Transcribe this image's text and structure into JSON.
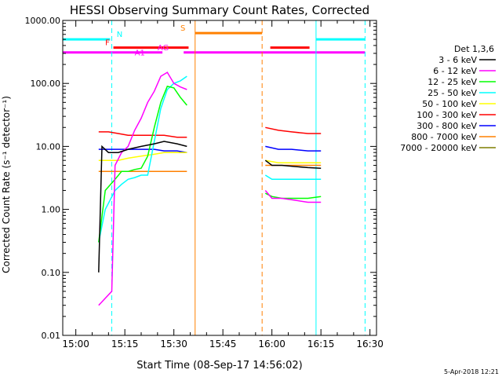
{
  "chart_data": {
    "type": "line",
    "title": "HESSI Observing Summary Count Rates, Corrected",
    "xlabel": "Start Time (08-Sep-17 14:56:02)",
    "ylabel": "Corrected Count Rate (s⁻¹ detector⁻¹)",
    "x_unit": "minutes after 14:56:02",
    "xlim": [
      0,
      96
    ],
    "ylim": [
      0.01,
      1000
    ],
    "yscale": "log",
    "x_ticks": [
      {
        "m": 4,
        "label": "15:00"
      },
      {
        "m": 19,
        "label": "15:15"
      },
      {
        "m": 34,
        "label": "15:30"
      },
      {
        "m": 49,
        "label": "15:45"
      },
      {
        "m": 64,
        "label": "16:00"
      },
      {
        "m": 79,
        "label": "16:15"
      },
      {
        "m": 94,
        "label": "16:30"
      }
    ],
    "y_ticks": [
      {
        "v": 0.01,
        "label": "0.01"
      },
      {
        "v": 0.1,
        "label": "0.10"
      },
      {
        "v": 1,
        "label": "1.00"
      },
      {
        "v": 10,
        "label": "10.00"
      },
      {
        "v": 100,
        "label": "100.00"
      },
      {
        "v": 1000,
        "label": "1000.00"
      }
    ],
    "legend_title": "Det 1,3,6",
    "legend_position": "right",
    "series": [
      {
        "name": "3 - 6 keV",
        "color": "#000000",
        "segments": [
          [
            [
              11,
              0.1
            ],
            [
              12,
              10
            ],
            [
              14,
              8
            ],
            [
              17,
              8
            ],
            [
              20,
              9
            ],
            [
              24,
              10
            ],
            [
              28,
              11
            ],
            [
              31,
              12
            ],
            [
              35,
              11
            ],
            [
              38,
              10
            ]
          ],
          [
            [
              62,
              6
            ],
            [
              64,
              5
            ],
            [
              67,
              5
            ],
            [
              71,
              4.8
            ],
            [
              75,
              4.6
            ],
            [
              79,
              4.5
            ]
          ]
        ]
      },
      {
        "name": "6 - 12 keV",
        "color": "#ff00ff",
        "segments": [
          [
            [
              11,
              0.03
            ],
            [
              15,
              0.05
            ],
            [
              16,
              5
            ],
            [
              18,
              8
            ],
            [
              20,
              10
            ],
            [
              22,
              18
            ],
            [
              24,
              28
            ],
            [
              26,
              50
            ],
            [
              28,
              75
            ],
            [
              30,
              130
            ],
            [
              32,
              150
            ],
            [
              34,
              100
            ],
            [
              36,
              88
            ],
            [
              38,
              80
            ]
          ],
          [
            [
              62,
              2
            ],
            [
              64,
              1.5
            ],
            [
              67,
              1.5
            ],
            [
              71,
              1.4
            ],
            [
              75,
              1.3
            ],
            [
              79,
              1.3
            ]
          ]
        ]
      },
      {
        "name": "12 - 25 keV",
        "color": "#00ff00",
        "segments": [
          [
            [
              11,
              0.3
            ],
            [
              13,
              2
            ],
            [
              16,
              3
            ],
            [
              18,
              4
            ],
            [
              20,
              4
            ],
            [
              22,
              4.3
            ],
            [
              24,
              4.5
            ],
            [
              26,
              7
            ],
            [
              28,
              20
            ],
            [
              30,
              50
            ],
            [
              32,
              90
            ],
            [
              34,
              85
            ],
            [
              36,
              60
            ],
            [
              38,
              45
            ]
          ],
          [
            [
              62,
              1.8
            ],
            [
              64,
              1.6
            ],
            [
              67,
              1.5
            ],
            [
              71,
              1.5
            ],
            [
              75,
              1.5
            ],
            [
              79,
              1.6
            ]
          ]
        ]
      },
      {
        "name": "25 - 50 keV",
        "color": "#00ffff",
        "segments": [
          [
            [
              11,
              0.3
            ],
            [
              13,
              1
            ],
            [
              16,
              2
            ],
            [
              18,
              2.5
            ],
            [
              20,
              3
            ],
            [
              22,
              3.2
            ],
            [
              24,
              3.5
            ],
            [
              26,
              3.5
            ],
            [
              28,
              12
            ],
            [
              30,
              40
            ],
            [
              32,
              80
            ],
            [
              34,
              100
            ],
            [
              36,
              110
            ],
            [
              38,
              130
            ]
          ],
          [
            [
              62,
              3.5
            ],
            [
              64,
              3
            ],
            [
              67,
              3
            ],
            [
              71,
              3
            ],
            [
              75,
              3
            ],
            [
              79,
              3
            ]
          ]
        ]
      },
      {
        "name": "50 - 100 keV",
        "color": "#ffff00",
        "segments": [
          [
            [
              11,
              6
            ],
            [
              14,
              6
            ],
            [
              17,
              6
            ],
            [
              20,
              6.5
            ],
            [
              24,
              7
            ],
            [
              28,
              7.5
            ],
            [
              31,
              8
            ],
            [
              35,
              8
            ],
            [
              38,
              8
            ]
          ],
          [
            [
              62,
              6
            ],
            [
              66,
              5.5
            ],
            [
              70,
              5.5
            ],
            [
              75,
              5.5
            ],
            [
              79,
              5.5
            ]
          ]
        ]
      },
      {
        "name": "100 - 300 keV",
        "color": "#ff0000",
        "segments": [
          [
            [
              11,
              17
            ],
            [
              14,
              17
            ],
            [
              17,
              16
            ],
            [
              20,
              15
            ],
            [
              24,
              15
            ],
            [
              28,
              15
            ],
            [
              31,
              15
            ],
            [
              35,
              14
            ],
            [
              38,
              14
            ]
          ],
          [
            [
              62,
              20
            ],
            [
              66,
              18
            ],
            [
              70,
              17
            ],
            [
              75,
              16
            ],
            [
              79,
              16
            ]
          ]
        ]
      },
      {
        "name": "300 - 800 keV",
        "color": "#0000ff",
        "segments": [
          [
            [
              11,
              9
            ],
            [
              14,
              9
            ],
            [
              17,
              9
            ],
            [
              20,
              9
            ],
            [
              24,
              9
            ],
            [
              28,
              9
            ],
            [
              31,
              8.5
            ],
            [
              35,
              8.5
            ],
            [
              38,
              8
            ]
          ],
          [
            [
              62,
              10
            ],
            [
              66,
              9
            ],
            [
              70,
              9
            ],
            [
              75,
              8.5
            ],
            [
              79,
              8.5
            ]
          ]
        ]
      },
      {
        "name": "800 - 7000 keV",
        "color": "#ff8000",
        "segments": [
          [
            [
              11,
              4
            ],
            [
              14,
              4
            ],
            [
              17,
              4
            ],
            [
              20,
              4
            ],
            [
              24,
              4
            ],
            [
              28,
              4
            ],
            [
              31,
              4
            ],
            [
              35,
              4
            ],
            [
              38,
              4
            ]
          ],
          [
            [
              62,
              5
            ],
            [
              66,
              5
            ],
            [
              70,
              5
            ],
            [
              75,
              5
            ],
            [
              79,
              5
            ]
          ]
        ]
      },
      {
        "name": "7000 - 20000 keV",
        "color": "#7f7f00",
        "segments": []
      }
    ],
    "annotations": [
      {
        "text": "N",
        "color": "#00ffff",
        "x": 16.5
      },
      {
        "text": "F",
        "color": "#ff0000",
        "x": 13
      },
      {
        "text": "AG",
        "color": "#ff00ff",
        "x": 29
      },
      {
        "text": "A1",
        "color": "#ff00ff",
        "x": 22
      },
      {
        "text": "S",
        "color": "#ff8000",
        "x": 36
      }
    ],
    "flag_bars": [
      {
        "name": "N",
        "color": "#00ffff",
        "y": 500,
        "ranges": [
          [
            0,
            14.5
          ],
          [
            77.5,
            92.5
          ]
        ]
      },
      {
        "name": "F",
        "color": "#ff0000",
        "y": 370,
        "ranges": [
          [
            15.5,
            38.5
          ],
          [
            63.5,
            75.5
          ]
        ]
      },
      {
        "name": "A",
        "color": "#ff00ff",
        "y": 310,
        "ranges": [
          [
            0,
            30.5
          ],
          [
            37,
            92.5
          ]
        ]
      },
      {
        "name": "S",
        "color": "#ff8000",
        "y": 630,
        "ranges": [
          [
            40.5,
            61
          ]
        ]
      }
    ],
    "vlines": [
      {
        "x": 15,
        "color": "#00ffff",
        "dash": true
      },
      {
        "x": 40.5,
        "color": "#ff8000",
        "dash": false
      },
      {
        "x": 61,
        "color": "#ff8000",
        "dash": true
      },
      {
        "x": 77.5,
        "color": "#00ffff",
        "dash": false
      },
      {
        "x": 92.5,
        "color": "#00ffff",
        "dash": true
      }
    ]
  },
  "footer": {
    "date": "5-Apr-2018 12:21"
  }
}
